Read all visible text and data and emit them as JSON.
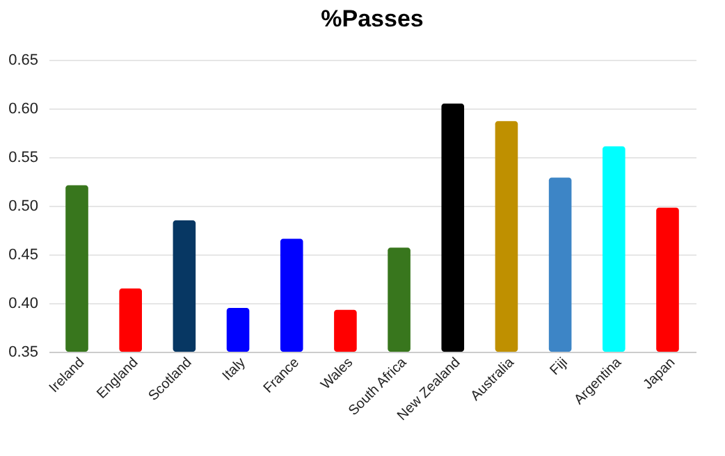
{
  "chart_data": {
    "type": "bar",
    "title": "%Passes",
    "categories": [
      "Ireland",
      "England",
      "Scotland",
      "Italy",
      "France",
      "Wales",
      "South Africa",
      "New Zealand",
      "Australia",
      "Fiji",
      "Argentina",
      "Japan"
    ],
    "values": [
      0.521,
      0.415,
      0.485,
      0.395,
      0.466,
      0.393,
      0.457,
      0.605,
      0.587,
      0.529,
      0.561,
      0.498
    ],
    "colors": [
      "#38761d",
      "#ff0000",
      "#073763",
      "#0000ff",
      "#0000ff",
      "#ff0000",
      "#38761d",
      "#000000",
      "#bf9000",
      "#3d85c6",
      "#00ffff",
      "#ff0000"
    ],
    "ylim": [
      0.35,
      0.65
    ],
    "yticks": [
      {
        "value": 0.35,
        "label": "0.35"
      },
      {
        "value": 0.4,
        "label": "0.40"
      },
      {
        "value": 0.45,
        "label": "0.45"
      },
      {
        "value": 0.5,
        "label": "0.50"
      },
      {
        "value": 0.55,
        "label": "0.55"
      },
      {
        "value": 0.6,
        "label": "0.60"
      },
      {
        "value": 0.65,
        "label": "0.65"
      }
    ],
    "grid": "y"
  }
}
